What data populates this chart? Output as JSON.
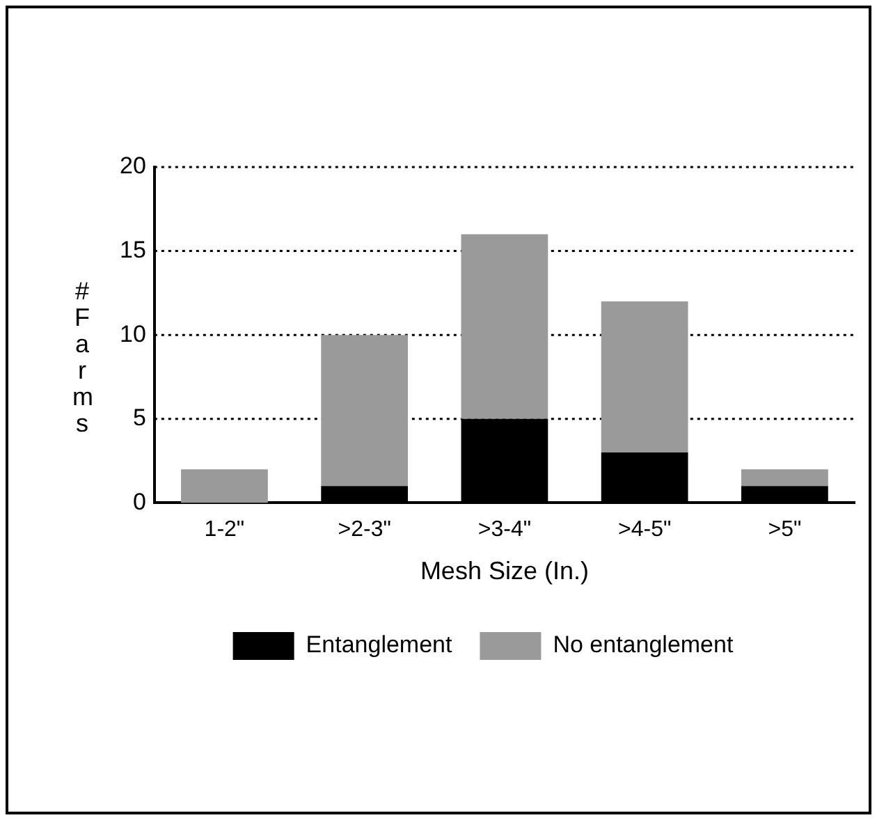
{
  "chart_data": {
    "type": "bar",
    "stacked": true,
    "xlabel": "Mesh Size (In.)",
    "ylabel": "# Farms",
    "categories": [
      "1-2\"",
      ">2-3\"",
      ">3-4\"",
      ">4-5\"",
      ">5\""
    ],
    "series": [
      {
        "name": "Entanglement",
        "color": "#000000",
        "values": [
          0,
          1,
          5,
          3,
          1
        ]
      },
      {
        "name": "No entanglement",
        "color": "#9a9a9a",
        "values": [
          2,
          9,
          11,
          9,
          1
        ]
      }
    ],
    "ylim": [
      0,
      20
    ],
    "yticks": [
      0,
      5,
      10,
      15,
      20
    ],
    "grid": "y",
    "legend": "bottom"
  }
}
